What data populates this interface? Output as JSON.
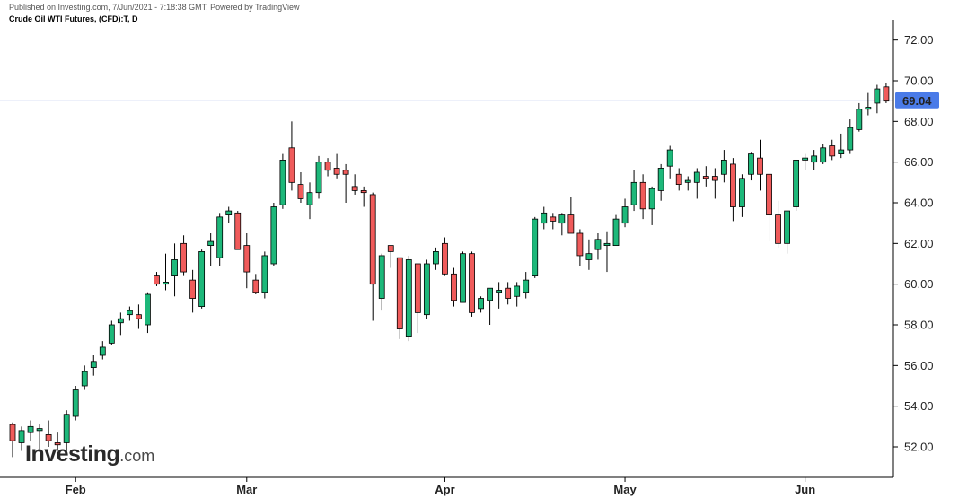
{
  "header": {
    "published": "Published on Investing.com, 7/Jun/2021 - 7:18:38 GMT, Powered by TradingView",
    "symbol": "Crude Oil WTI Futures, (CFD):T, D"
  },
  "logo": {
    "main": "Investing",
    "suffix": ".com"
  },
  "colors": {
    "up": "#1db87a",
    "down": "#f05b5b",
    "wick": "#000000",
    "price_line": "#b7c3ec",
    "price_badge": "#4a7be8",
    "grid": "#000000"
  },
  "chart_data": {
    "type": "candlestick",
    "ylim": [
      50.5,
      73.0
    ],
    "y_ticks": [
      72,
      70,
      68,
      66,
      64,
      62,
      60,
      58,
      56,
      54,
      52
    ],
    "y_tick_labels": [
      "72.00",
      "70.00",
      "68.00",
      "66.00",
      "64.00",
      "62.00",
      "60.00",
      "58.00",
      "56.00",
      "54.00",
      "52.00"
    ],
    "x_ticks": [
      {
        "label": "Feb",
        "index": 7
      },
      {
        "label": "Mar",
        "index": 26
      },
      {
        "label": "Apr",
        "index": 48
      },
      {
        "label": "May",
        "index": 68
      },
      {
        "label": "Jun",
        "index": 88
      }
    ],
    "last_price": {
      "value": 69.04,
      "label": "69.04"
    },
    "ohlc": [
      [
        53.1,
        53.2,
        51.5,
        52.3
      ],
      [
        52.2,
        53.0,
        51.8,
        52.8
      ],
      [
        52.7,
        53.3,
        52.3,
        53.0
      ],
      [
        52.8,
        53.1,
        51.9,
        52.9
      ],
      [
        52.6,
        53.3,
        52.0,
        52.3
      ],
      [
        52.2,
        52.7,
        51.8,
        52.1
      ],
      [
        52.2,
        53.8,
        51.7,
        53.6
      ],
      [
        53.5,
        55.0,
        53.3,
        54.8
      ],
      [
        55.0,
        56.0,
        54.8,
        55.7
      ],
      [
        55.9,
        56.5,
        55.5,
        56.2
      ],
      [
        56.5,
        57.2,
        56.3,
        56.9
      ],
      [
        57.1,
        58.2,
        57.0,
        58.0
      ],
      [
        58.1,
        58.6,
        57.5,
        58.3
      ],
      [
        58.5,
        58.9,
        58.2,
        58.7
      ],
      [
        58.5,
        59.0,
        57.8,
        58.3
      ],
      [
        58.0,
        59.6,
        57.6,
        59.5
      ],
      [
        60.4,
        60.6,
        59.9,
        60.0
      ],
      [
        60.0,
        61.5,
        59.7,
        60.1
      ],
      [
        60.4,
        62.0,
        59.4,
        61.2
      ],
      [
        62.0,
        62.4,
        60.4,
        60.6
      ],
      [
        60.2,
        60.7,
        58.6,
        59.3
      ],
      [
        58.9,
        61.7,
        58.8,
        61.6
      ],
      [
        61.9,
        62.5,
        60.9,
        62.1
      ],
      [
        61.3,
        63.5,
        60.9,
        63.3
      ],
      [
        63.4,
        63.8,
        63.0,
        63.6
      ],
      [
        63.5,
        63.6,
        61.8,
        61.7
      ],
      [
        61.9,
        62.5,
        59.8,
        60.6
      ],
      [
        60.2,
        60.5,
        59.5,
        59.6
      ],
      [
        59.6,
        61.6,
        59.3,
        61.4
      ],
      [
        61.0,
        64.0,
        60.9,
        63.8
      ],
      [
        63.9,
        66.4,
        63.7,
        66.1
      ],
      [
        66.7,
        68.0,
        64.6,
        65.0
      ],
      [
        64.9,
        65.5,
        64.0,
        64.2
      ],
      [
        63.9,
        65.0,
        63.2,
        64.5
      ],
      [
        64.5,
        66.3,
        64.2,
        66.0
      ],
      [
        66.0,
        66.2,
        65.3,
        65.6
      ],
      [
        65.7,
        66.4,
        65.2,
        65.4
      ],
      [
        65.6,
        65.9,
        64.0,
        65.4
      ],
      [
        64.8,
        65.4,
        64.4,
        64.6
      ],
      [
        64.6,
        64.8,
        63.8,
        64.5
      ],
      [
        64.4,
        64.5,
        58.2,
        60.0
      ],
      [
        59.3,
        61.5,
        58.7,
        61.4
      ],
      [
        61.9,
        61.9,
        60.8,
        61.6
      ],
      [
        61.3,
        61.3,
        57.3,
        57.8
      ],
      [
        57.4,
        61.4,
        57.2,
        61.2
      ],
      [
        61.0,
        61.0,
        57.6,
        58.6
      ],
      [
        58.5,
        61.2,
        58.3,
        61.0
      ],
      [
        61.0,
        61.8,
        60.7,
        61.6
      ],
      [
        62.0,
        62.3,
        60.4,
        60.5
      ],
      [
        60.5,
        60.8,
        58.9,
        59.2
      ],
      [
        59.1,
        61.6,
        59.1,
        61.5
      ],
      [
        61.5,
        61.6,
        58.4,
        58.6
      ],
      [
        58.8,
        59.4,
        58.6,
        59.3
      ],
      [
        59.2,
        59.7,
        58.0,
        59.8
      ],
      [
        59.6,
        60.1,
        58.8,
        59.7
      ],
      [
        59.8,
        60.1,
        59.0,
        59.3
      ],
      [
        59.4,
        60.1,
        58.9,
        59.9
      ],
      [
        59.6,
        60.6,
        59.3,
        60.2
      ],
      [
        60.4,
        63.3,
        60.3,
        63.2
      ],
      [
        63.0,
        63.8,
        62.7,
        63.5
      ],
      [
        63.3,
        63.5,
        62.7,
        63.1
      ],
      [
        63.0,
        63.5,
        62.4,
        63.4
      ],
      [
        63.4,
        64.3,
        62.6,
        62.5
      ],
      [
        62.5,
        62.7,
        60.9,
        61.4
      ],
      [
        61.2,
        62.2,
        60.7,
        61.5
      ],
      [
        61.7,
        62.5,
        61.2,
        62.2
      ],
      [
        61.9,
        62.6,
        60.6,
        62.0
      ],
      [
        61.9,
        63.4,
        61.9,
        63.2
      ],
      [
        63.0,
        64.2,
        62.8,
        63.8
      ],
      [
        63.9,
        65.6,
        63.6,
        65.0
      ],
      [
        65.0,
        65.4,
        63.2,
        63.7
      ],
      [
        63.7,
        64.8,
        62.9,
        64.7
      ],
      [
        64.6,
        65.9,
        64.1,
        65.7
      ],
      [
        65.8,
        66.8,
        65.2,
        66.6
      ],
      [
        65.4,
        65.7,
        64.6,
        64.9
      ],
      [
        65.0,
        65.3,
        64.6,
        65.1
      ],
      [
        65.0,
        65.7,
        64.2,
        65.5
      ],
      [
        65.3,
        65.8,
        64.8,
        65.2
      ],
      [
        65.3,
        65.7,
        64.2,
        65.1
      ],
      [
        65.4,
        66.6,
        65.0,
        66.1
      ],
      [
        65.9,
        66.2,
        63.1,
        63.8
      ],
      [
        63.8,
        65.4,
        63.3,
        65.2
      ],
      [
        65.4,
        66.5,
        65.1,
        66.4
      ],
      [
        66.2,
        67.1,
        64.6,
        65.4
      ],
      [
        65.4,
        65.4,
        62.1,
        63.4
      ],
      [
        63.4,
        64.1,
        61.8,
        62.0
      ],
      [
        62.0,
        63.6,
        61.5,
        63.6
      ],
      [
        63.8,
        66.1,
        63.6,
        66.1
      ],
      [
        66.1,
        66.4,
        65.6,
        66.2
      ],
      [
        66.0,
        66.6,
        65.6,
        66.3
      ],
      [
        66.0,
        66.9,
        65.9,
        66.7
      ],
      [
        66.8,
        67.1,
        66.1,
        66.3
      ],
      [
        66.4,
        67.4,
        66.2,
        66.6
      ],
      [
        66.6,
        68.1,
        66.4,
        67.7
      ],
      [
        67.6,
        68.9,
        67.5,
        68.6
      ],
      [
        68.6,
        69.4,
        68.3,
        68.7
      ],
      [
        68.9,
        69.8,
        68.4,
        69.6
      ],
      [
        69.7,
        69.9,
        68.9,
        69.0
      ]
    ]
  }
}
